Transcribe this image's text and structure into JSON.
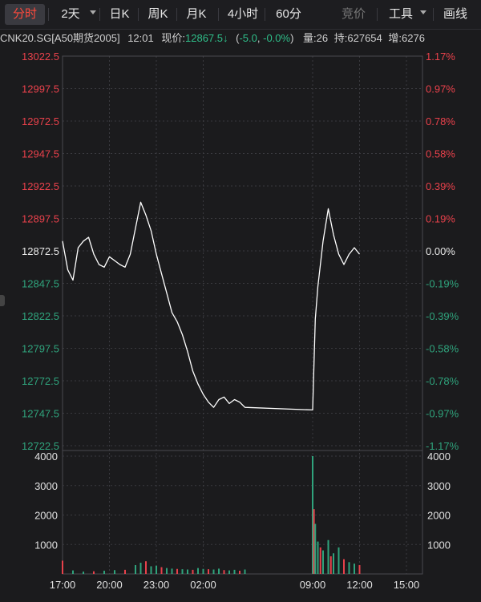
{
  "toolbar": {
    "tabs": [
      {
        "label": "分时",
        "active": true
      },
      {
        "label": "2天",
        "dropdown": true
      },
      {
        "label": "日K"
      },
      {
        "label": "周K"
      },
      {
        "label": "月K"
      },
      {
        "label": "4小时"
      },
      {
        "label": "60分"
      },
      {
        "label": "竞价",
        "disabled": true
      },
      {
        "label": "工具",
        "dropdown": true
      },
      {
        "label": "画线"
      }
    ]
  },
  "quote": {
    "symbol": "CNK20.SG[A50期货2005]",
    "time": "12:01",
    "price_label": "现价:",
    "price": "12867.5",
    "change": "-5.0",
    "change_pct": "-0.0%",
    "volume_label": "量:",
    "volume": "26",
    "hold_label": "持:",
    "hold": "627654",
    "increase_label": "增:",
    "increase": "6276"
  },
  "colors": {
    "up": "#e8414b",
    "down": "#2fa37c",
    "neutral": "#e8e8e8",
    "line": "#ffffff",
    "grid": "#3a3a3f"
  },
  "chart_data": {
    "type": "line",
    "price_ticks": [
      "13022.5",
      "12997.5",
      "12972.5",
      "12947.5",
      "12922.5",
      "12897.5",
      "12872.5",
      "12847.5",
      "12822.5",
      "12797.5",
      "12772.5",
      "12747.5",
      "12722.5"
    ],
    "pct_ticks": [
      "1.17%",
      "0.97%",
      "0.78%",
      "0.58%",
      "0.39%",
      "0.19%",
      "0.00%",
      "-0.19%",
      "-0.39%",
      "-0.58%",
      "-0.78%",
      "-0.97%",
      "-1.17%"
    ],
    "ylim": [
      12722.5,
      13022.5
    ],
    "reference_price": 12872.5,
    "x_ticks": [
      "17:00",
      "20:00",
      "23:00",
      "02:00",
      "09:00",
      "12:00",
      "15:00"
    ],
    "volume_ticks": [
      "4000",
      "3000",
      "2000",
      "1000"
    ],
    "volume_ylim": [
      0,
      4000
    ],
    "price_series": [
      {
        "x": "17:00",
        "y": 12880
      },
      {
        "x": "17:20",
        "y": 12858
      },
      {
        "x": "17:40",
        "y": 12850
      },
      {
        "x": "18:00",
        "y": 12875
      },
      {
        "x": "18:20",
        "y": 12880
      },
      {
        "x": "18:40",
        "y": 12883
      },
      {
        "x": "19:00",
        "y": 12870
      },
      {
        "x": "19:20",
        "y": 12862
      },
      {
        "x": "19:40",
        "y": 12860
      },
      {
        "x": "20:00",
        "y": 12868
      },
      {
        "x": "20:20",
        "y": 12865
      },
      {
        "x": "20:40",
        "y": 12862
      },
      {
        "x": "21:00",
        "y": 12860
      },
      {
        "x": "21:20",
        "y": 12870
      },
      {
        "x": "21:40",
        "y": 12890
      },
      {
        "x": "22:00",
        "y": 12910
      },
      {
        "x": "22:20",
        "y": 12900
      },
      {
        "x": "22:40",
        "y": 12888
      },
      {
        "x": "23:00",
        "y": 12870
      },
      {
        "x": "23:20",
        "y": 12855
      },
      {
        "x": "23:40",
        "y": 12840
      },
      {
        "x": "00:00",
        "y": 12825
      },
      {
        "x": "00:20",
        "y": 12818
      },
      {
        "x": "00:40",
        "y": 12808
      },
      {
        "x": "01:00",
        "y": 12795
      },
      {
        "x": "01:20",
        "y": 12780
      },
      {
        "x": "01:40",
        "y": 12770
      },
      {
        "x": "02:00",
        "y": 12762
      },
      {
        "x": "02:20",
        "y": 12756
      },
      {
        "x": "02:40",
        "y": 12752
      },
      {
        "x": "03:00",
        "y": 12758
      },
      {
        "x": "03:20",
        "y": 12760
      },
      {
        "x": "03:40",
        "y": 12755
      },
      {
        "x": "04:00",
        "y": 12758
      },
      {
        "x": "04:20",
        "y": 12756
      },
      {
        "x": "04:40",
        "y": 12752
      },
      {
        "x": "09:00",
        "y": 12750
      },
      {
        "x": "09:10",
        "y": 12820
      },
      {
        "x": "09:20",
        "y": 12845
      },
      {
        "x": "09:40",
        "y": 12880
      },
      {
        "x": "10:00",
        "y": 12905
      },
      {
        "x": "10:20",
        "y": 12885
      },
      {
        "x": "10:40",
        "y": 12870
      },
      {
        "x": "11:00",
        "y": 12862
      },
      {
        "x": "11:20",
        "y": 12870
      },
      {
        "x": "11:40",
        "y": 12875
      },
      {
        "x": "12:00",
        "y": 12870
      }
    ],
    "volume_series": [
      {
        "x": "17:00",
        "v": 450
      },
      {
        "x": "17:40",
        "v": 120
      },
      {
        "x": "18:20",
        "v": 80
      },
      {
        "x": "19:00",
        "v": 90
      },
      {
        "x": "19:40",
        "v": 110
      },
      {
        "x": "20:20",
        "v": 130
      },
      {
        "x": "21:00",
        "v": 140
      },
      {
        "x": "21:40",
        "v": 300
      },
      {
        "x": "22:00",
        "v": 380
      },
      {
        "x": "22:20",
        "v": 430
      },
      {
        "x": "22:40",
        "v": 260
      },
      {
        "x": "23:00",
        "v": 280
      },
      {
        "x": "23:20",
        "v": 230
      },
      {
        "x": "23:40",
        "v": 200
      },
      {
        "x": "00:00",
        "v": 180
      },
      {
        "x": "00:20",
        "v": 170
      },
      {
        "x": "00:40",
        "v": 160
      },
      {
        "x": "01:00",
        "v": 150
      },
      {
        "x": "01:20",
        "v": 140
      },
      {
        "x": "01:40",
        "v": 200
      },
      {
        "x": "02:00",
        "v": 170
      },
      {
        "x": "02:20",
        "v": 160
      },
      {
        "x": "02:40",
        "v": 150
      },
      {
        "x": "03:00",
        "v": 180
      },
      {
        "x": "03:20",
        "v": 130
      },
      {
        "x": "03:40",
        "v": 120
      },
      {
        "x": "04:00",
        "v": 140
      },
      {
        "x": "04:20",
        "v": 110
      },
      {
        "x": "04:40",
        "v": 150
      },
      {
        "x": "09:00",
        "v": 4000
      },
      {
        "x": "09:05",
        "v": 2200
      },
      {
        "x": "09:10",
        "v": 1700
      },
      {
        "x": "09:20",
        "v": 1100
      },
      {
        "x": "09:30",
        "v": 900
      },
      {
        "x": "09:40",
        "v": 800
      },
      {
        "x": "10:00",
        "v": 1150
      },
      {
        "x": "10:10",
        "v": 600
      },
      {
        "x": "10:20",
        "v": 700
      },
      {
        "x": "10:40",
        "v": 900
      },
      {
        "x": "11:00",
        "v": 500
      },
      {
        "x": "11:20",
        "v": 400
      },
      {
        "x": "11:40",
        "v": 350
      },
      {
        "x": "12:00",
        "v": 300
      }
    ]
  }
}
